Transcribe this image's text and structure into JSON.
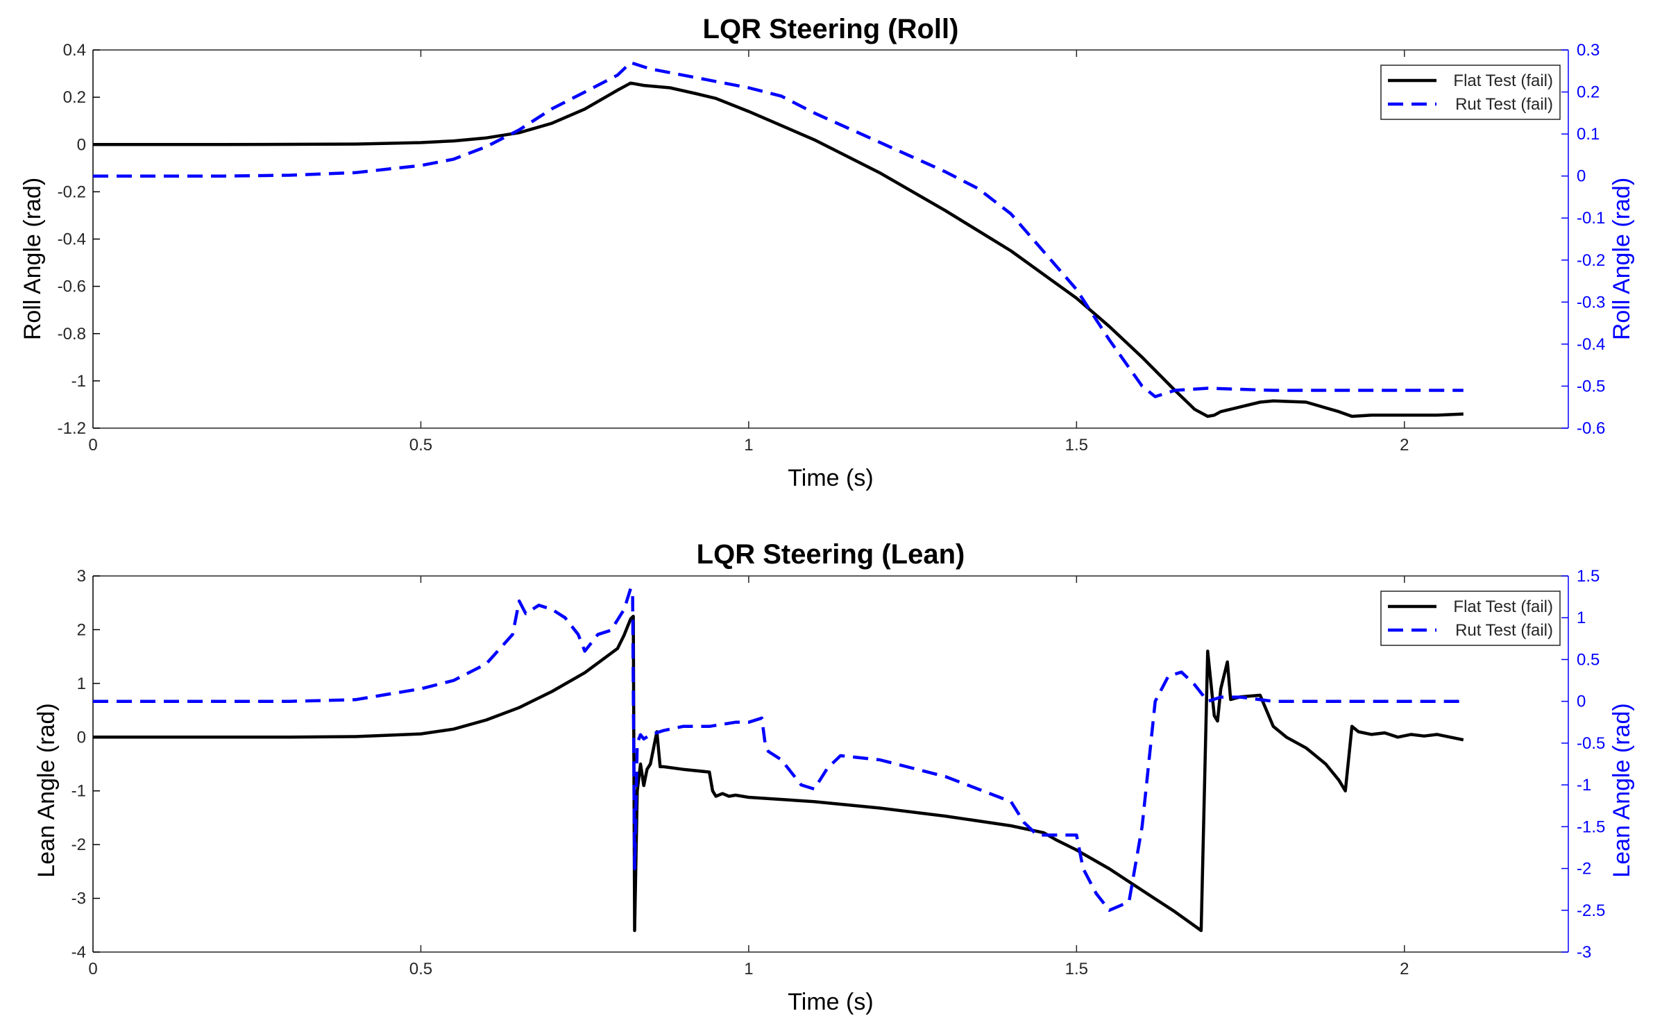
{
  "chart_data": [
    {
      "type": "line",
      "title": "LQR Steering (Roll)",
      "xlabel": "Time (s)",
      "ylabel": "Roll Angle (rad)",
      "ylabel_right": "Roll Angle (rad)",
      "xlim": [
        0,
        2.25
      ],
      "ylim": [
        -1.2,
        0.4
      ],
      "ylim_right": [
        -0.6,
        0.3
      ],
      "x_ticks": [
        0,
        0.5,
        1,
        1.5,
        2
      ],
      "y_ticks": [
        0.4,
        0.2,
        0,
        -0.2,
        -0.4,
        -0.6,
        -0.8,
        -1,
        -1.2
      ],
      "y_ticks_right": [
        0.3,
        0.2,
        0.1,
        0,
        -0.1,
        -0.2,
        -0.3,
        -0.4,
        -0.5,
        -0.6
      ],
      "legend_position": "top-right",
      "grid": false,
      "colors": {
        "left_axis": "#000000",
        "right_axis": "#0000ff"
      },
      "series": [
        {
          "name": "Flat Test (fail)",
          "axis": "left",
          "color": "#000000",
          "style": "solid",
          "x": [
            0,
            0.2,
            0.4,
            0.5,
            0.55,
            0.6,
            0.65,
            0.7,
            0.75,
            0.8,
            0.82,
            0.84,
            0.88,
            0.92,
            0.95,
            1.0,
            1.1,
            1.2,
            1.3,
            1.4,
            1.5,
            1.55,
            1.6,
            1.65,
            1.68,
            1.7,
            1.71,
            1.72,
            1.75,
            1.78,
            1.8,
            1.85,
            1.9,
            1.92,
            1.95,
            2.0,
            2.05,
            2.09
          ],
          "y": [
            0,
            0,
            0.002,
            0.008,
            0.015,
            0.028,
            0.05,
            0.09,
            0.15,
            0.23,
            0.26,
            0.25,
            0.24,
            0.215,
            0.195,
            0.14,
            0.02,
            -0.12,
            -0.28,
            -0.45,
            -0.65,
            -0.77,
            -0.9,
            -1.04,
            -1.12,
            -1.15,
            -1.145,
            -1.13,
            -1.11,
            -1.09,
            -1.085,
            -1.09,
            -1.13,
            -1.15,
            -1.145,
            -1.145,
            -1.145,
            -1.14
          ]
        },
        {
          "name": "Rut Test (fail)",
          "axis": "right",
          "color": "#0000ff",
          "style": "dashed",
          "x": [
            0,
            0.2,
            0.3,
            0.4,
            0.5,
            0.55,
            0.6,
            0.65,
            0.7,
            0.75,
            0.8,
            0.82,
            0.85,
            0.9,
            0.95,
            1.0,
            1.05,
            1.1,
            1.2,
            1.3,
            1.35,
            1.4,
            1.45,
            1.5,
            1.55,
            1.6,
            1.62,
            1.65,
            1.7,
            1.8,
            1.9,
            2.0,
            2.09
          ],
          "y": [
            0,
            0,
            0.002,
            0.008,
            0.025,
            0.04,
            0.07,
            0.11,
            0.16,
            0.2,
            0.24,
            0.27,
            0.255,
            0.24,
            0.225,
            0.21,
            0.19,
            0.15,
            0.08,
            0.01,
            -0.03,
            -0.09,
            -0.18,
            -0.27,
            -0.39,
            -0.5,
            -0.525,
            -0.51,
            -0.505,
            -0.51,
            -0.51,
            -0.51,
            -0.51
          ]
        }
      ]
    },
    {
      "type": "line",
      "title": "LQR Steering (Lean)",
      "xlabel": "Time (s)",
      "ylabel": "Lean Angle (rad)",
      "ylabel_right": "Lean Angle (rad)",
      "xlim": [
        0,
        2.25
      ],
      "ylim": [
        -4,
        3
      ],
      "ylim_right": [
        -3,
        1.5
      ],
      "x_ticks": [
        0,
        0.5,
        1,
        1.5,
        2
      ],
      "y_ticks": [
        3,
        2,
        1,
        0,
        -1,
        -2,
        -3,
        -4
      ],
      "y_ticks_right": [
        1.5,
        1,
        0.5,
        0,
        -0.5,
        -1,
        -1.5,
        -2,
        -2.5,
        -3
      ],
      "legend_position": "top-right",
      "grid": false,
      "colors": {
        "left_axis": "#000000",
        "right_axis": "#0000ff"
      },
      "series": [
        {
          "name": "Flat Test (fail)",
          "axis": "left",
          "color": "#000000",
          "style": "solid",
          "x": [
            0,
            0.3,
            0.4,
            0.5,
            0.55,
            0.6,
            0.65,
            0.7,
            0.75,
            0.8,
            0.81,
            0.82,
            0.824,
            0.826,
            0.83,
            0.835,
            0.84,
            0.845,
            0.85,
            0.86,
            0.865,
            0.87,
            0.9,
            0.94,
            0.945,
            0.95,
            0.96,
            0.97,
            0.98,
            1.0,
            1.1,
            1.2,
            1.3,
            1.4,
            1.45,
            1.47,
            1.5,
            1.55,
            1.6,
            1.65,
            1.69,
            1.695,
            1.7,
            1.71,
            1.715,
            1.72,
            1.73,
            1.735,
            1.75,
            1.78,
            1.8,
            1.82,
            1.85,
            1.88,
            1.9,
            1.91,
            1.92,
            1.93,
            1.95,
            1.97,
            1.99,
            2.01,
            2.03,
            2.05,
            2.07,
            2.09
          ],
          "y": [
            0,
            0,
            0.01,
            0.06,
            0.15,
            0.32,
            0.55,
            0.85,
            1.2,
            1.65,
            1.9,
            2.2,
            2.25,
            -3.6,
            -1.0,
            -0.5,
            -0.9,
            -0.6,
            -0.5,
            0.1,
            -0.55,
            -0.55,
            -0.6,
            -0.65,
            -1.0,
            -1.1,
            -1.05,
            -1.1,
            -1.08,
            -1.12,
            -1.2,
            -1.32,
            -1.47,
            -1.65,
            -1.78,
            -1.92,
            -2.1,
            -2.45,
            -2.85,
            -3.25,
            -3.6,
            -1.0,
            1.6,
            0.4,
            0.3,
            0.9,
            1.4,
            0.7,
            0.75,
            0.78,
            0.2,
            0.0,
            -0.2,
            -0.5,
            -0.8,
            -1.0,
            0.2,
            0.1,
            0.05,
            0.08,
            0.0,
            0.05,
            0.02,
            0.05,
            0.0,
            -0.05
          ]
        },
        {
          "name": "Rut Test (fail)",
          "axis": "right",
          "color": "#0000ff",
          "style": "dashed",
          "x": [
            0,
            0.3,
            0.4,
            0.5,
            0.55,
            0.6,
            0.64,
            0.65,
            0.66,
            0.68,
            0.7,
            0.72,
            0.74,
            0.75,
            0.77,
            0.79,
            0.81,
            0.82,
            0.823,
            0.826,
            0.83,
            0.835,
            0.84,
            0.85,
            0.87,
            0.9,
            0.94,
            0.98,
            1.0,
            1.02,
            1.025,
            1.03,
            1.05,
            1.08,
            1.1,
            1.12,
            1.14,
            1.2,
            1.3,
            1.4,
            1.42,
            1.44,
            1.48,
            1.5,
            1.51,
            1.53,
            1.55,
            1.58,
            1.6,
            1.62,
            1.64,
            1.66,
            1.68,
            1.7,
            1.72,
            1.75,
            1.8,
            1.9,
            2.0,
            2.09
          ],
          "y": [
            0,
            0,
            0.02,
            0.15,
            0.25,
            0.45,
            0.8,
            1.2,
            1.05,
            1.15,
            1.1,
            1.0,
            0.8,
            0.6,
            0.8,
            0.85,
            1.1,
            1.35,
            1.3,
            -2.0,
            -0.5,
            -0.4,
            -0.45,
            -0.4,
            -0.35,
            -0.3,
            -0.3,
            -0.25,
            -0.25,
            -0.2,
            -0.5,
            -0.6,
            -0.7,
            -1.0,
            -1.05,
            -0.8,
            -0.65,
            -0.7,
            -0.9,
            -1.2,
            -1.45,
            -1.6,
            -1.6,
            -1.6,
            -2.0,
            -2.3,
            -2.5,
            -2.4,
            -1.5,
            0.0,
            0.3,
            0.35,
            0.2,
            0.0,
            0.05,
            0.05,
            0.0,
            0.0,
            0.0,
            0.0
          ]
        }
      ]
    }
  ]
}
